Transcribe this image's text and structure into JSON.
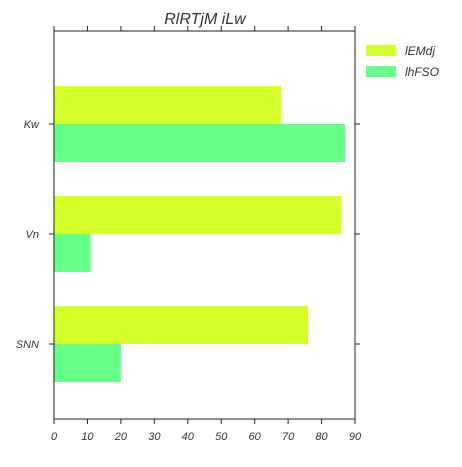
{
  "chart_data": {
    "type": "bar",
    "orientation": "horizontal",
    "title": "RlRTjM iLw",
    "xlabel": "",
    "ylabel": "",
    "xlim": [
      0,
      90
    ],
    "xticks": [
      0,
      10,
      20,
      30,
      40,
      50,
      60,
      70,
      80,
      90
    ],
    "categories": [
      "Kw",
      "Vn",
      "SNN"
    ],
    "series": [
      {
        "name": "lEMdj",
        "color": "#d4ff2a",
        "values": [
          68,
          86,
          76
        ]
      },
      {
        "name": "lhFSO",
        "color": "#66ff88",
        "values": [
          87,
          11,
          20
        ]
      }
    ],
    "grid": false,
    "legend": "top-right, outside plot"
  }
}
